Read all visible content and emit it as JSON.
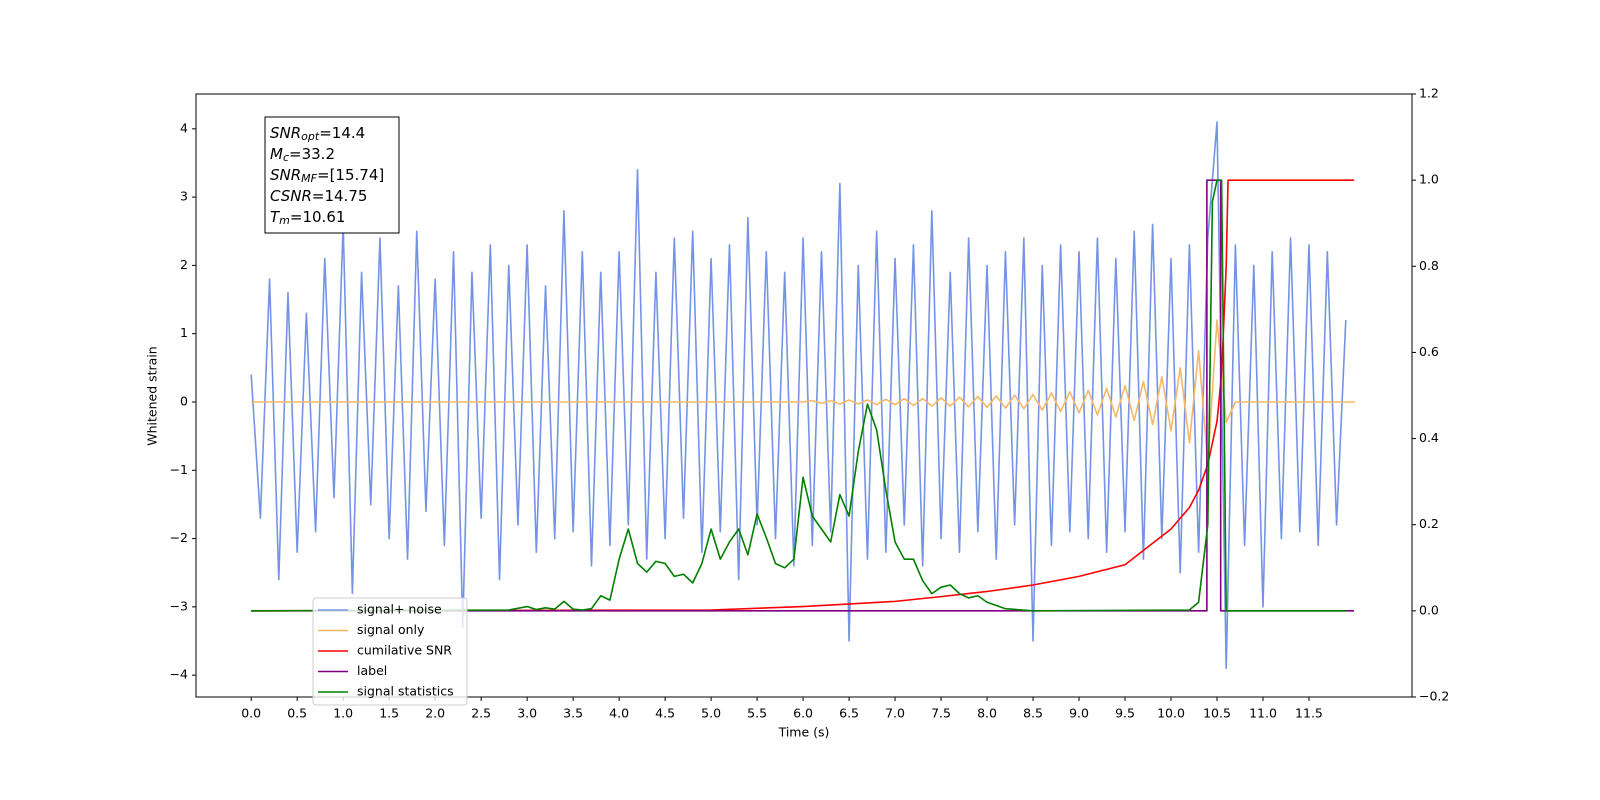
{
  "chart_data": {
    "type": "line",
    "xlabel": "Time (s)",
    "ylabel": "Whitened strain",
    "xlim": [
      -0.6,
      12.62
    ],
    "ylim": [
      -4.32,
      4.51
    ],
    "y2lim": [
      -0.2,
      1.2
    ],
    "xticks": [
      {
        "value": 0,
        "label": "0.0"
      },
      0.5,
      {
        "value": 1,
        "label": "1.0"
      },
      1.5,
      {
        "value": 2,
        "label": "2.0"
      },
      2.5,
      {
        "value": 3,
        "label": "3.0"
      },
      3.5,
      {
        "value": 4,
        "label": "4.0"
      },
      4.5,
      {
        "value": 5,
        "label": "5.0"
      },
      5.5,
      {
        "value": 6,
        "label": "6.0"
      },
      6.5,
      {
        "value": 7,
        "label": "7.0"
      },
      7.5,
      {
        "value": 8,
        "label": "8.0"
      },
      8.5,
      {
        "value": 9,
        "label": "9.0"
      },
      9.5,
      {
        "value": 10,
        "label": "10.0"
      },
      10.5,
      {
        "value": 11,
        "label": "11.0"
      },
      11.5
    ],
    "yticks": [
      {
        "value": -4,
        "label": "−4"
      },
      {
        "value": -3,
        "label": "−3"
      },
      {
        "value": -2,
        "label": "−2"
      },
      {
        "value": -1,
        "label": "−1"
      },
      0,
      1,
      2,
      3,
      4
    ],
    "y2ticks": [
      {
        "value": -0.2,
        "label": "−0.2"
      },
      {
        "value": 0,
        "label": "0.0"
      },
      0.2,
      0.4,
      0.6,
      0.8,
      {
        "value": 1,
        "label": "1.0"
      },
      1.2
    ],
    "annotation": [
      {
        "base": "SNR",
        "sub": "opt",
        "rest": "=14.4"
      },
      {
        "base": "M",
        "sub": "c",
        "rest": "=33.2"
      },
      {
        "base": "SNR",
        "sub": "MF",
        "rest": "=[15.74]"
      },
      {
        "base": "CSNR",
        "sub": null,
        "rest": "=14.75"
      },
      {
        "base": "T",
        "sub": "m",
        "rest": "=10.61"
      }
    ],
    "legend": "lower left",
    "series": [
      {
        "name": "signal+ noise",
        "color": "#7593e6",
        "axis": "y",
        "x": [
          0,
          0.1,
          0.2,
          0.3,
          0.4,
          0.5,
          0.6,
          0.7,
          0.8,
          0.9,
          1,
          1.1,
          1.2,
          1.3,
          1.4,
          1.5,
          1.6,
          1.7,
          1.8,
          1.9,
          2,
          2.1,
          2.2,
          2.3,
          2.4,
          2.5,
          2.6,
          2.7,
          2.8,
          2.9,
          3,
          3.1,
          3.2,
          3.3,
          3.4,
          3.5,
          3.6,
          3.7,
          3.8,
          3.9,
          4,
          4.1,
          4.2,
          4.3,
          4.4,
          4.5,
          4.6,
          4.7,
          4.8,
          4.9,
          5,
          5.1,
          5.2,
          5.3,
          5.4,
          5.5,
          5.6,
          5.7,
          5.8,
          5.9,
          6,
          6.1,
          6.2,
          6.3,
          6.4,
          6.5,
          6.6,
          6.7,
          6.8,
          6.9,
          7,
          7.1,
          7.2,
          7.3,
          7.4,
          7.5,
          7.6,
          7.7,
          7.8,
          7.9,
          8,
          8.1,
          8.2,
          8.3,
          8.4,
          8.5,
          8.6,
          8.7,
          8.8,
          8.9,
          9,
          9.1,
          9.2,
          9.3,
          9.4,
          9.5,
          9.6,
          9.7,
          9.8,
          9.9,
          10,
          10.1,
          10.2,
          10.3,
          10.4,
          10.5,
          10.6,
          10.7,
          10.8,
          10.9,
          11,
          11.1,
          11.2,
          11.3,
          11.4,
          11.5,
          11.6,
          11.7,
          11.8,
          11.9
        ],
        "values": [
          0.4,
          -1.7,
          1.8,
          -2.6,
          1.6,
          -2.2,
          1.3,
          -1.9,
          2.1,
          -1.4,
          2.6,
          -2.8,
          1.9,
          -1.5,
          2.4,
          -2.0,
          1.7,
          -2.3,
          2.5,
          -1.6,
          1.8,
          -2.1,
          2.2,
          -3.3,
          1.9,
          -1.7,
          2.3,
          -2.6,
          2.0,
          -1.8,
          2.3,
          -2.2,
          1.7,
          -2.0,
          2.8,
          -1.9,
          2.2,
          -2.4,
          1.9,
          -2.1,
          2.2,
          -1.8,
          3.4,
          -2.3,
          1.9,
          -2.0,
          2.4,
          -1.7,
          2.5,
          -2.2,
          2.1,
          -1.9,
          2.3,
          -2.6,
          2.7,
          -1.8,
          2.2,
          -2.0,
          1.9,
          -2.4,
          2.4,
          -2.1,
          2.2,
          -1.9,
          3.2,
          -3.5,
          2.0,
          -2.3,
          2.5,
          -2.2,
          2.1,
          -1.8,
          2.3,
          -2.4,
          2.8,
          -2.0,
          1.9,
          -2.2,
          2.4,
          -1.9,
          2.0,
          -2.3,
          2.2,
          -1.8,
          2.4,
          -3.5,
          2.0,
          -2.1,
          2.3,
          -1.9,
          2.2,
          -2.0,
          2.4,
          -2.2,
          2.1,
          -1.9,
          2.5,
          -2.3,
          2.6,
          -2.0,
          2.1,
          -2.5,
          2.3,
          -2.2,
          2.4,
          4.1,
          -3.9,
          2.3,
          -2.1,
          2.0,
          -3.0,
          2.2,
          -2.0,
          2.4,
          -1.9,
          2.3,
          -2.1,
          2.2,
          -1.8,
          1.2
        ]
      },
      {
        "name": "signal only",
        "color": "#f5b866",
        "axis": "y",
        "x": [
          0,
          6.0,
          6.1,
          6.2,
          6.3,
          6.4,
          6.5,
          6.6,
          6.7,
          6.8,
          6.9,
          7.0,
          7.1,
          7.2,
          7.3,
          7.4,
          7.5,
          7.6,
          7.7,
          7.8,
          7.9,
          8.0,
          8.1,
          8.2,
          8.3,
          8.4,
          8.5,
          8.6,
          8.7,
          8.8,
          8.9,
          9.0,
          9.1,
          9.2,
          9.3,
          9.4,
          9.5,
          9.6,
          9.7,
          9.8,
          9.9,
          10.0,
          10.1,
          10.2,
          10.3,
          10.4,
          10.5,
          10.6,
          10.7,
          12.0
        ],
        "values": [
          0,
          0,
          0.02,
          -0.02,
          0.02,
          -0.03,
          0.03,
          -0.03,
          0.03,
          -0.04,
          0.04,
          -0.04,
          0.05,
          -0.05,
          0.05,
          -0.06,
          0.06,
          -0.06,
          0.07,
          -0.07,
          0.08,
          -0.08,
          0.09,
          -0.09,
          0.1,
          -0.1,
          0.11,
          -0.12,
          0.13,
          -0.14,
          0.15,
          -0.16,
          0.17,
          -0.19,
          0.2,
          -0.22,
          0.24,
          -0.27,
          0.3,
          -0.33,
          0.37,
          -0.42,
          0.5,
          -0.6,
          0.75,
          -0.9,
          1.2,
          -0.3,
          0,
          0
        ]
      },
      {
        "name": "cumilative SNR",
        "color": "#ff0000",
        "axis": "y2",
        "x": [
          0,
          5.0,
          6.0,
          7.0,
          7.5,
          8.0,
          8.5,
          9.0,
          9.5,
          10.0,
          10.2,
          10.3,
          10.4,
          10.5,
          10.55,
          10.6,
          10.62,
          11.99
        ],
        "values": [
          0,
          0.002,
          0.01,
          0.022,
          0.033,
          0.045,
          0.06,
          0.08,
          0.107,
          0.19,
          0.24,
          0.28,
          0.34,
          0.44,
          0.55,
          0.8,
          1.0,
          1.0
        ]
      },
      {
        "name": "label",
        "color": "#800080",
        "axis": "y2",
        "x": [
          0,
          10.39,
          10.39,
          10.54,
          10.54,
          11.99
        ],
        "values": [
          0,
          0,
          1,
          1,
          0,
          0
        ]
      },
      {
        "name": "signal statistics",
        "color": "#008000",
        "axis": "y2",
        "x": [
          0,
          2.8,
          3.0,
          3.1,
          3.2,
          3.3,
          3.4,
          3.5,
          3.6,
          3.7,
          3.8,
          3.9,
          4.0,
          4.1,
          4.2,
          4.3,
          4.4,
          4.5,
          4.6,
          4.7,
          4.8,
          4.9,
          5.0,
          5.1,
          5.2,
          5.3,
          5.4,
          5.5,
          5.6,
          5.7,
          5.8,
          5.9,
          6.0,
          6.1,
          6.2,
          6.3,
          6.4,
          6.5,
          6.6,
          6.7,
          6.8,
          6.9,
          7.0,
          7.1,
          7.2,
          7.3,
          7.4,
          7.5,
          7.6,
          7.7,
          7.8,
          7.9,
          8.0,
          8.2,
          8.5,
          10.2,
          10.3,
          10.4,
          10.45,
          10.5,
          10.55,
          10.6,
          11.9
        ],
        "values": [
          0,
          0.002,
          0.01,
          0.003,
          0.007,
          0.004,
          0.022,
          0.004,
          0.002,
          0.005,
          0.035,
          0.025,
          0.12,
          0.19,
          0.11,
          0.09,
          0.115,
          0.11,
          0.08,
          0.085,
          0.065,
          0.11,
          0.19,
          0.12,
          0.16,
          0.19,
          0.13,
          0.225,
          0.17,
          0.11,
          0.1,
          0.12,
          0.31,
          0.22,
          0.19,
          0.16,
          0.27,
          0.22,
          0.37,
          0.48,
          0.42,
          0.28,
          0.16,
          0.12,
          0.12,
          0.07,
          0.04,
          0.055,
          0.06,
          0.04,
          0.03,
          0.035,
          0.02,
          0.005,
          0,
          0.002,
          0.02,
          0.2,
          0.95,
          1.0,
          1.0,
          0,
          0
        ]
      }
    ]
  }
}
